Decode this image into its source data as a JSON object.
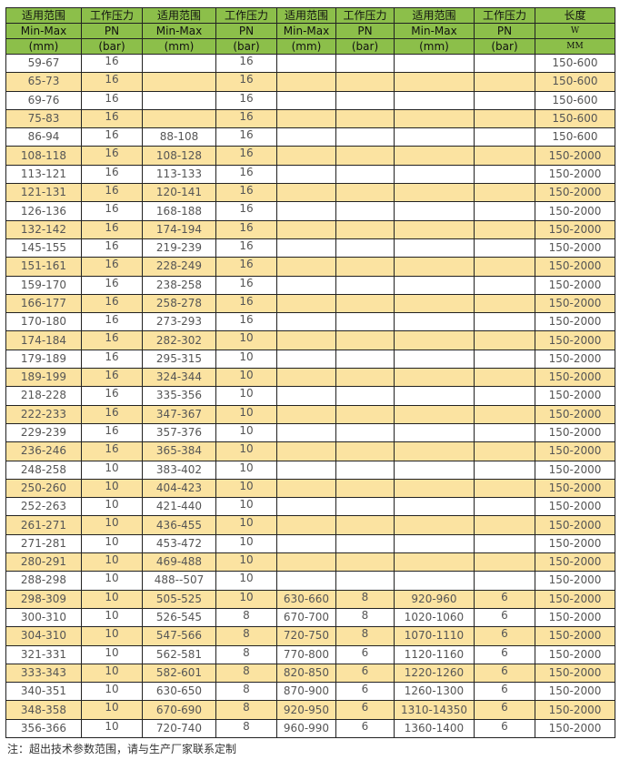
{
  "header": {
    "row1": [
      "适用范围",
      "工作压力",
      "适用范围",
      "工作压力",
      "适用范围",
      "工作压力",
      "适用范围",
      "工作压力",
      "长度"
    ],
    "row2": [
      "Min-Max",
      "PN",
      "Min-Max",
      "PN",
      "Min-Max",
      "PN",
      "Min-Max",
      "PN",
      "W"
    ],
    "row3": [
      "(mm)",
      "(bar)",
      "(mm)",
      "(bar)",
      "(mm)",
      "(bar)",
      "(mm)",
      "(bar)",
      "MM"
    ]
  },
  "colors": {
    "header_bg": "#8cbf4a",
    "alt_row_bg": "#fbe3a1",
    "text": "#555555"
  },
  "rows": [
    [
      "59-67",
      "16",
      "",
      "16",
      "",
      "",
      "",
      "",
      "150-600"
    ],
    [
      "65-73",
      "16",
      "",
      "16",
      "",
      "",
      "",
      "",
      "150-600"
    ],
    [
      "69-76",
      "16",
      "",
      "16",
      "",
      "",
      "",
      "",
      "150-600"
    ],
    [
      "75-83",
      "16",
      "",
      "16",
      "",
      "",
      "",
      "",
      "150-600"
    ],
    [
      "86-94",
      "16",
      "88-108",
      "16",
      "",
      "",
      "",
      "",
      "150-600"
    ],
    [
      "108-118",
      "16",
      "108-128",
      "16",
      "",
      "",
      "",
      "",
      "150-2000"
    ],
    [
      "113-121",
      "16",
      "113-133",
      "16",
      "",
      "",
      "",
      "",
      "150-2000"
    ],
    [
      "121-131",
      "16",
      "120-141",
      "16",
      "",
      "",
      "",
      "",
      "150-2000"
    ],
    [
      "126-136",
      "16",
      "168-188",
      "16",
      "",
      "",
      "",
      "",
      "150-2000"
    ],
    [
      "132-142",
      "16",
      "174-194",
      "16",
      "",
      "",
      "",
      "",
      "150-2000"
    ],
    [
      "145-155",
      "16",
      "219-239",
      "16",
      "",
      "",
      "",
      "",
      "150-2000"
    ],
    [
      "151-161",
      "16",
      "228-249",
      "16",
      "",
      "",
      "",
      "",
      "150-2000"
    ],
    [
      "159-170",
      "16",
      "238-258",
      "16",
      "",
      "",
      "",
      "",
      "150-2000"
    ],
    [
      "166-177",
      "16",
      "258-278",
      "16",
      "",
      "",
      "",
      "",
      "150-2000"
    ],
    [
      "170-180",
      "16",
      "273-293",
      "16",
      "",
      "",
      "",
      "",
      "150-2000"
    ],
    [
      "174-184",
      "16",
      "282-302",
      "10",
      "",
      "",
      "",
      "",
      "150-2000"
    ],
    [
      "179-189",
      "16",
      "295-315",
      "10",
      "",
      "",
      "",
      "",
      "150-2000"
    ],
    [
      "189-199",
      "16",
      "324-344",
      "10",
      "",
      "",
      "",
      "",
      "150-2000"
    ],
    [
      "218-228",
      "16",
      "335-356",
      "10",
      "",
      "",
      "",
      "",
      "150-2000"
    ],
    [
      "222-233",
      "16",
      "347-367",
      "10",
      "",
      "",
      "",
      "",
      "150-2000"
    ],
    [
      "229-239",
      "16",
      "357-376",
      "10",
      "",
      "",
      "",
      "",
      "150-2000"
    ],
    [
      "236-246",
      "16",
      "365-384",
      "10",
      "",
      "",
      "",
      "",
      "150-2000"
    ],
    [
      "248-258",
      "10",
      "383-402",
      "10",
      "",
      "",
      "",
      "",
      "150-2000"
    ],
    [
      "250-260",
      "10",
      "404-423",
      "10",
      "",
      "",
      "",
      "",
      "150-2000"
    ],
    [
      "252-263",
      "10",
      "421-440",
      "10",
      "",
      "",
      "",
      "",
      "150-2000"
    ],
    [
      "261-271",
      "10",
      "436-455",
      "10",
      "",
      "",
      "",
      "",
      "150-2000"
    ],
    [
      "271-281",
      "10",
      "453-472",
      "10",
      "",
      "",
      "",
      "",
      "150-2000"
    ],
    [
      "280-291",
      "10",
      "469-488",
      "10",
      "",
      "",
      "",
      "",
      "150-2000"
    ],
    [
      "288-298",
      "10",
      "488--507",
      "10",
      "",
      "",
      "",
      "",
      "150-2000"
    ],
    [
      "298-309",
      "10",
      "505-525",
      "10",
      "630-660",
      "8",
      "920-960",
      "6",
      "150-2000"
    ],
    [
      "300-310",
      "10",
      "526-545",
      "8",
      "670-700",
      "8",
      "1020-1060",
      "6",
      "150-2000"
    ],
    [
      "304-310",
      "10",
      "547-566",
      "8",
      "720-750",
      "8",
      "1070-1110",
      "6",
      "150-2000"
    ],
    [
      "321-331",
      "10",
      "562-581",
      "8",
      "770-800",
      "6",
      "1120-1160",
      "6",
      "150-2000"
    ],
    [
      "333-343",
      "10",
      "582-601",
      "8",
      "820-850",
      "6",
      "1220-1260",
      "6",
      "150-2000"
    ],
    [
      "340-351",
      "10",
      "630-650",
      "8",
      "870-900",
      "6",
      "1260-1300",
      "6",
      "150-2000"
    ],
    [
      "348-358",
      "10",
      "670-690",
      "8",
      "920-950",
      "6",
      "1310-14350",
      "6",
      "150-2000"
    ],
    [
      "356-366",
      "10",
      "720-740",
      "8",
      "960-990",
      "6",
      "1360-1400",
      "6",
      "150-2000"
    ]
  ],
  "note": "注：超出技术参数范围，请与生产厂家联系定制"
}
